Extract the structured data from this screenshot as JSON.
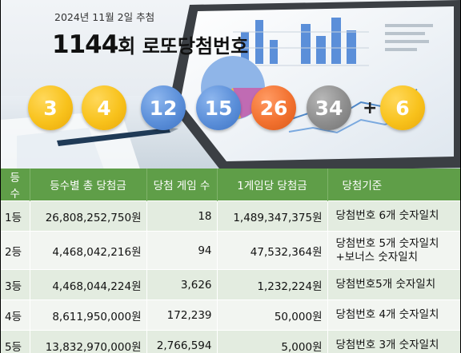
{
  "header": {
    "draw_date": "2024년 11월 2일 추첨",
    "round_number": "1144",
    "round_suffix": "회 로또당첨번호"
  },
  "winning_numbers": [
    {
      "value": "3",
      "color": "#f8c21c"
    },
    {
      "value": "4",
      "color": "#f8c21c"
    },
    {
      "value": "12",
      "color": "#5b8fd9"
    },
    {
      "value": "15",
      "color": "#5b8fd9"
    },
    {
      "value": "26",
      "color": "#f2712f"
    },
    {
      "value": "34",
      "color": "#8e8e8e"
    }
  ],
  "plus_sign": "+",
  "bonus_number": {
    "value": "6",
    "color": "#f8c21c"
  },
  "table": {
    "headers": [
      "등수",
      "등수별 총 당첨금",
      "당첨 게임 수",
      "1게임당 당첨금",
      "당첨기준"
    ],
    "rows": [
      {
        "rank": "1등",
        "total": "26,808,252,750원",
        "winners": "18",
        "per_game": "1,489,347,375원",
        "criteria": "당첨번호 6개 숫자일치"
      },
      {
        "rank": "2등",
        "total": "4,468,042,216원",
        "winners": "94",
        "per_game": "47,532,364원",
        "criteria": "당첨번호 5개 숫자일치",
        "criteria2": "+보너스 숫자일치"
      },
      {
        "rank": "3등",
        "total": "4,468,044,224원",
        "winners": "3,626",
        "per_game": "1,232,224원",
        "criteria": "당첨번호5개 숫자일치"
      },
      {
        "rank": "4등",
        "total": "8,611,950,000원",
        "winners": "172,239",
        "per_game": "50,000원",
        "criteria": "당첨번호 4개 숫자일치"
      },
      {
        "rank": "5등",
        "total": "13,832,970,000원",
        "winners": "2,766,594",
        "per_game": "5,000원",
        "criteria": "당첨번호 3개 숫자일치"
      }
    ]
  },
  "colors": {
    "header_green": "#5f9e48",
    "row_odd": "#e3ece0",
    "row_even": "#f2f5f1"
  }
}
